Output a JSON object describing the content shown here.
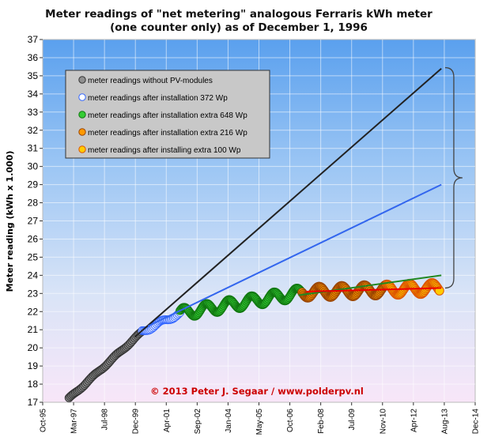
{
  "chart_data": {
    "type": "line",
    "title_lines": [
      "Meter readings of \"net metering\" analogous Ferraris kWh meter",
      "(one counter only) as of December 1, 1996"
    ],
    "ylabel": "Meter reading (kWh x 1.000)",
    "xlabel": "",
    "ylim": [
      17,
      37
    ],
    "yticks": [
      17,
      18,
      19,
      20,
      21,
      22,
      23,
      24,
      25,
      26,
      27,
      28,
      29,
      30,
      31,
      32,
      33,
      34,
      35,
      36,
      37
    ],
    "xlim": [
      "1995-10",
      "2014-12"
    ],
    "xticks": [
      "Oct-95",
      "Mar-97",
      "Jul-98",
      "Dec-99",
      "Apr-01",
      "Sep-02",
      "Jan-04",
      "May-05",
      "Oct-06",
      "Feb-08",
      "Jul-09",
      "Nov-10",
      "Apr-12",
      "Aug-13",
      "Dec-14"
    ],
    "grid": true,
    "legend_position": "top-left",
    "annotation": "© 2013 Peter J. Segaar / www.polderpv.nl",
    "colors": {
      "background_top": "#5aa0ee",
      "background_bottom": "#f8e6f8",
      "without_pv": "#909090",
      "pv_372": "#ffffff",
      "extra_648": "#33cc33",
      "extra_216": "#ff9900",
      "extra_100": "#ffcc00",
      "trend_black": "#222222",
      "trend_blue": "#3366ee",
      "trend_green": "#228822",
      "trend_red": "#ee0000",
      "annotation": "#cc0000"
    },
    "series": [
      {
        "name": "meter readings without PV-modules",
        "kind": "markers",
        "x_start": "1996-12",
        "x_end": "2000-03",
        "y_start": 17.2,
        "y_end": 20.9,
        "amplitude": 0.05,
        "count": 58,
        "marker": "circle",
        "marker_size": 5,
        "fill": "#909090",
        "stroke": "#333333"
      },
      {
        "name": "meter readings after installation 372 Wp",
        "kind": "markers",
        "x_start": "2000-03",
        "x_end": "2001-11",
        "y_start": 20.9,
        "y_end": 21.9,
        "amplitude": 0.1,
        "count": 30,
        "marker": "circle",
        "marker_size": 5,
        "fill": "#ffffff",
        "stroke": "#3366ff"
      },
      {
        "name": "meter readings after installation extra 648 Wp",
        "kind": "markers",
        "x_start": "2001-11",
        "x_end": "2007-04",
        "y_start": 21.9,
        "y_end": 23.05,
        "amplitude": 0.3,
        "count": 130,
        "marker": "circle",
        "marker_size": 5,
        "fill": "#33cc33",
        "stroke": "#117711"
      },
      {
        "name": "meter readings after installation extra 216 Wp",
        "kind": "markers",
        "x_start": "2007-04",
        "x_end": "2011-01",
        "y_start": 23.05,
        "y_end": 23.2,
        "amplitude": 0.3,
        "count": 90,
        "marker": "circle",
        "marker_size": 5.5,
        "fill": "#ff9900",
        "stroke": "#994400"
      },
      {
        "name": "meter readings after installing extra 100 Wp",
        "kind": "markers",
        "x_start": "2011-01",
        "x_end": "2013-05",
        "y_start": 23.2,
        "y_end": 23.3,
        "amplitude": 0.3,
        "count": 60,
        "marker": "circle",
        "marker_size": 5.5,
        "fill": "#ffcc00",
        "stroke": "#dd5500"
      }
    ],
    "trend_lines": [
      {
        "x": [
          "1999-11",
          "2013-06"
        ],
        "y": [
          20.6,
          35.4
        ],
        "color": "#222222",
        "width": 2
      },
      {
        "x": [
          "2000-06",
          "2013-06"
        ],
        "y": [
          21.2,
          29.0
        ],
        "color": "#3366ee",
        "width": 2
      },
      {
        "x": [
          "2007-02",
          "2013-06"
        ],
        "y": [
          22.9,
          24.0
        ],
        "color": "#228822",
        "width": 2
      },
      {
        "x": [
          "2007-06",
          "2013-06"
        ],
        "y": [
          23.1,
          23.3
        ],
        "color": "#ee0000",
        "width": 2
      }
    ],
    "brace": {
      "x": "2013-08",
      "y_top": 35.45,
      "y_bottom": 23.3
    }
  }
}
